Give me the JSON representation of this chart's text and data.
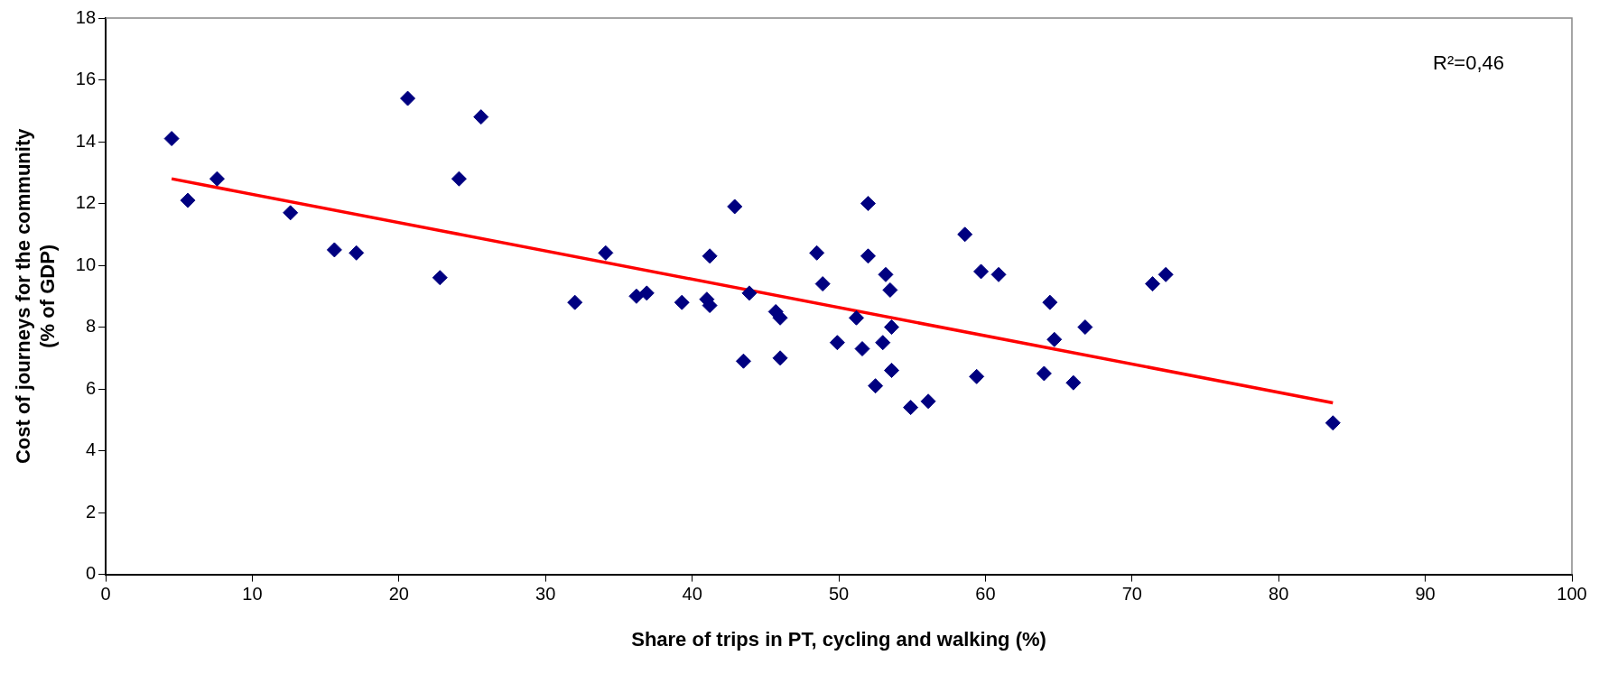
{
  "chart_data": {
    "type": "scatter",
    "xlabel": "Share of trips in PT, cycling and walking (%)",
    "ylabel": "Cost of journeys for the community\n(% of GDP)",
    "xlim": [
      0,
      100
    ],
    "xticks": [
      0,
      10,
      20,
      30,
      40,
      50,
      60,
      70,
      80,
      90,
      100
    ],
    "ylim": [
      0,
      18
    ],
    "yticks": [
      0,
      2,
      4,
      6,
      8,
      10,
      12,
      14,
      16,
      18
    ],
    "grid": false,
    "legend": false,
    "marker": "diamond",
    "annotations": [
      "R²=0,46"
    ],
    "series": [
      {
        "type": "scatter",
        "color": "#000080",
        "x": [
          4.5,
          5.6,
          7.6,
          12.6,
          15.6,
          17.1,
          20.6,
          22.8,
          24.1,
          25.6,
          32,
          34.1,
          36.2,
          36.9,
          39.3,
          41,
          41.2,
          41.2,
          42.9,
          43.5,
          43.9,
          45.7,
          46,
          46,
          48.5,
          48.9,
          49.9,
          51.2,
          51.6,
          52,
          52,
          52.5,
          53,
          53.2,
          53.5,
          53.6,
          53.6,
          54.9,
          56.1,
          58.6,
          59.4,
          59.7,
          60.9,
          64,
          64.4,
          64.7,
          66,
          66.8,
          71.4,
          72.3,
          83.7
        ],
        "values": [
          14.1,
          12.1,
          12.8,
          11.7,
          10.5,
          10.4,
          15.4,
          9.6,
          12.8,
          14.8,
          8.8,
          10.4,
          9.0,
          9.1,
          8.8,
          8.9,
          8.7,
          10.3,
          11.9,
          6.9,
          9.1,
          8.5,
          8.3,
          7.0,
          10.4,
          9.4,
          7.5,
          8.3,
          7.3,
          12.0,
          10.3,
          6.1,
          7.5,
          9.7,
          9.2,
          8.0,
          6.6,
          5.4,
          5.6,
          11.0,
          6.4,
          9.8,
          9.7,
          6.5,
          8.8,
          7.6,
          6.2,
          8.0,
          9.4,
          9.7,
          4.9
        ]
      },
      {
        "type": "line",
        "color": "#ff0000",
        "marker": "none",
        "x": [
          4.5,
          83.7
        ],
        "values": [
          12.8,
          5.55
        ]
      }
    ]
  }
}
